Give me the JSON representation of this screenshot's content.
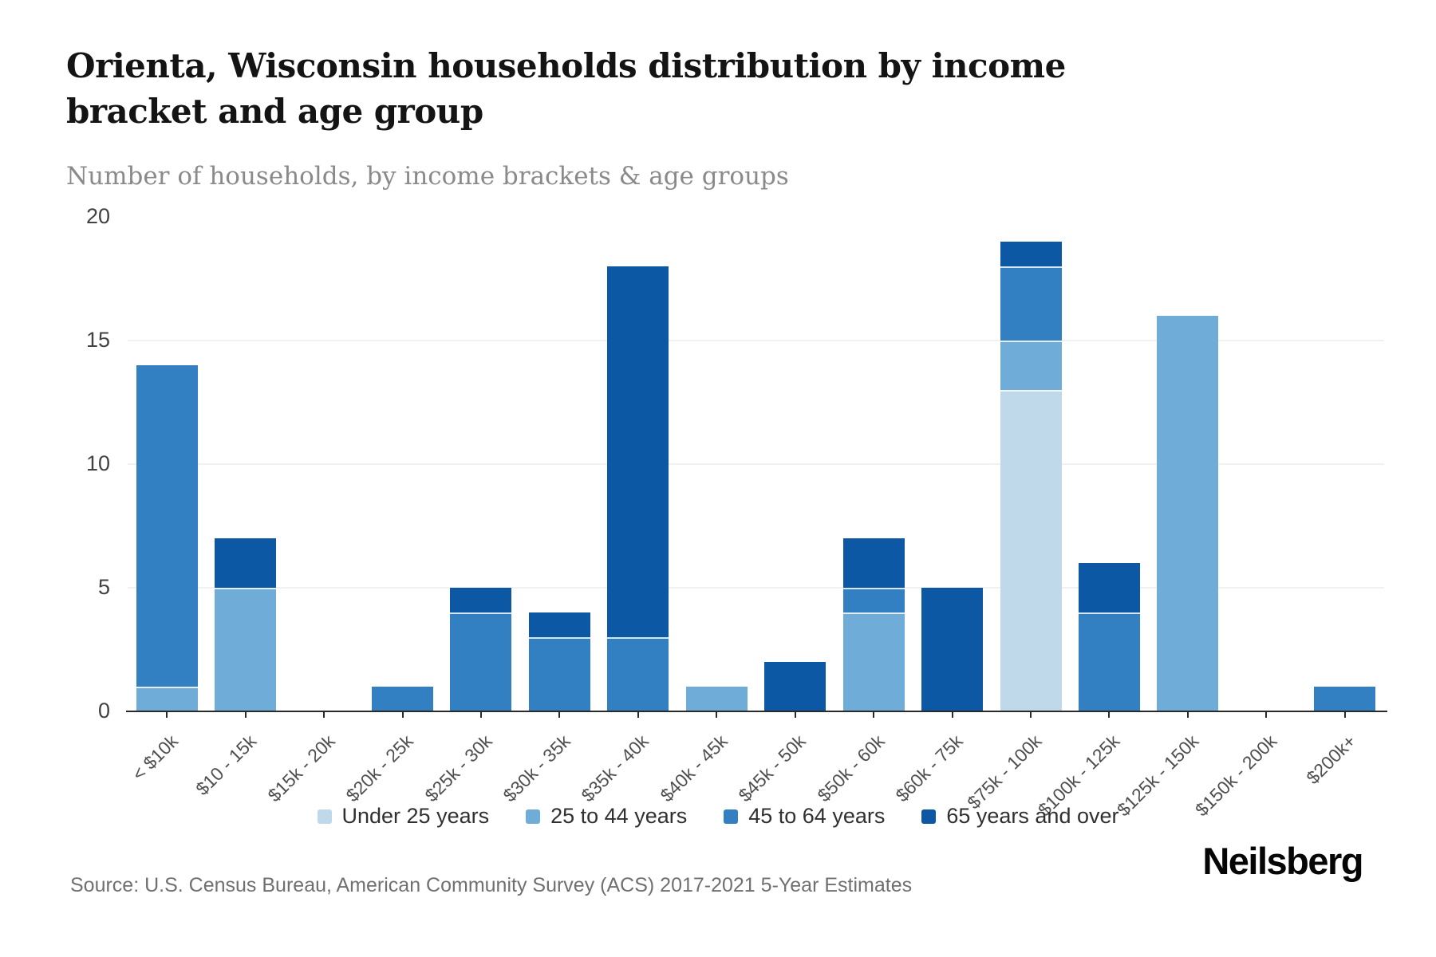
{
  "header": {
    "title": "Orienta, Wisconsin households distribution by income bracket and age group",
    "subtitle": "Number of households, by income brackets & age groups"
  },
  "chart_data": {
    "type": "bar",
    "stacked": true,
    "title": "Orienta, Wisconsin households distribution by income bracket and age group",
    "subtitle": "Number of households, by income brackets & age groups",
    "categories": [
      "< $10k",
      "$10 - 15k",
      "$15k - 20k",
      "$20k - 25k",
      "$25k - 30k",
      "$30k - 35k",
      "$35k - 40k",
      "$40k - 45k",
      "$45k - 50k",
      "$50k - 60k",
      "$60k - 75k",
      "$75k - 100k",
      "$100k - 125k",
      "$125k - 150k",
      "$150k - 200k",
      "$200k+"
    ],
    "series": [
      {
        "name": "Under 25 years",
        "color": "#bfd8ea",
        "values": [
          0,
          0,
          0,
          0,
          0,
          0,
          0,
          0,
          0,
          0,
          0,
          13,
          0,
          0,
          0,
          0
        ]
      },
      {
        "name": "25 to 44 years",
        "color": "#70acd8",
        "values": [
          1,
          5,
          0,
          0,
          0,
          0,
          0,
          1,
          0,
          4,
          0,
          2,
          0,
          16,
          0,
          0
        ]
      },
      {
        "name": "45 to 64 years",
        "color": "#3280c1",
        "values": [
          13,
          0,
          0,
          1,
          4,
          3,
          3,
          0,
          0,
          1,
          0,
          3,
          4,
          0,
          0,
          1
        ]
      },
      {
        "name": "65 years and over",
        "color": "#0d58a5",
        "values": [
          0,
          2,
          0,
          0,
          1,
          1,
          15,
          0,
          2,
          2,
          5,
          1,
          2,
          0,
          0,
          0
        ]
      }
    ],
    "totals": [
      14,
      7,
      0,
      1,
      5,
      4,
      18,
      1,
      2,
      7,
      5,
      19,
      6,
      16,
      0,
      1
    ],
    "xlabel": "",
    "ylabel": "",
    "ylim": [
      0,
      20
    ],
    "yticks": [
      0,
      5,
      10,
      15,
      20
    ],
    "grid": "horizontal",
    "legend_position": "bottom"
  },
  "footer": {
    "source": "Source: U.S. Census Bureau, American Community Survey (ACS) 2017-2021 5-Year Estimates",
    "brand": "Neilsberg"
  }
}
